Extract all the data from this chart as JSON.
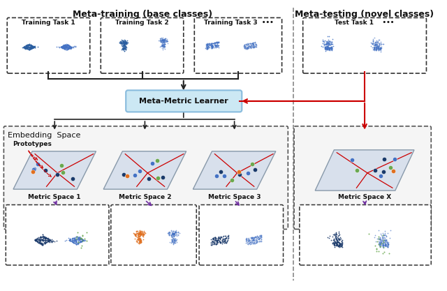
{
  "title": "",
  "bg_color": "#ffffff",
  "meta_training_label": "Meta-training (base classes)",
  "meta_testing_label": "Meta-testing (novel classes)",
  "embedding_space_label": "Embedding  Space",
  "meta_metric_learner_label": "Meta-Metric Learner",
  "prototypes_label": "Prototypes",
  "task_labels": [
    "Training Task 1",
    "Training Task 2",
    "Training Task 3  •••",
    "Test Task 1    •••"
  ],
  "metric_space_labels": [
    "Metric Space 1",
    "Metric Space 2",
    "Metric Space 3",
    "Metric Space X"
  ],
  "box_dash_color": "#333333",
  "arrow_color_black": "#222222",
  "arrow_color_red": "#cc0000",
  "arrow_color_purple": "#7030a0",
  "meta_metric_box_color": "#cce8f4",
  "meta_metric_edge_color": "#88bbdd",
  "divider_color": "#888888",
  "plane_fill_color": "#d8e0ec",
  "plane_edge_color": "#8899aa",
  "embedding_box_facecolor": "#f5f5f5",
  "embedding_box_edgecolor": "#555555",
  "scatter_dark_blue": "#1a3a6b",
  "scatter_med_blue": "#4472c4",
  "scatter_green": "#6aa84f",
  "scatter_orange": "#e07020",
  "voronoi_color": "#cc0000"
}
